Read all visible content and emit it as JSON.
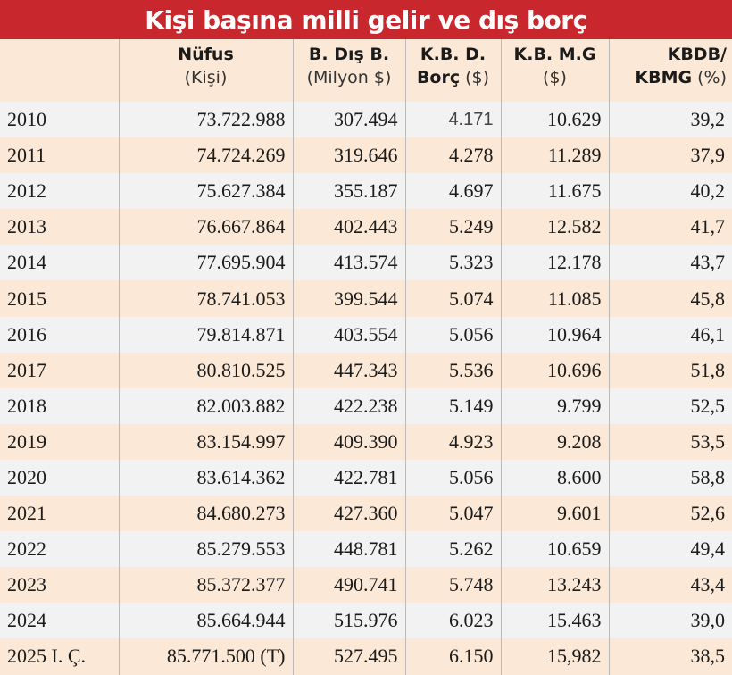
{
  "title": "Kişi başına milli gelir ve dış borç",
  "headers": [
    {
      "line1": "",
      "line2": ""
    },
    {
      "line1": "Nüfus",
      "line2": "(Kişi)"
    },
    {
      "line1": "B. Dış B.",
      "line2": "(Milyon $)"
    },
    {
      "line1": "K.B. D.",
      "line2_bold": "Borç",
      "line2": " ($)"
    },
    {
      "line1": "K.B. M.G",
      "line2": "($)"
    },
    {
      "line1": "KBDB/",
      "line2_bold": "KBMG",
      "line2": " (%)"
    }
  ],
  "rows": [
    {
      "year": "2010",
      "nufus": "73.722.988",
      "dis_borc": "307.494",
      "kb_borc": "4.171",
      "kb_mg": "10.629",
      "oran": "39,2"
    },
    {
      "year": "2011",
      "nufus": "74.724.269",
      "dis_borc": "319.646",
      "kb_borc": "4.278",
      "kb_mg": "11.289",
      "oran": "37,9"
    },
    {
      "year": "2012",
      "nufus": "75.627.384",
      "dis_borc": "355.187",
      "kb_borc": "4.697",
      "kb_mg": "11.675",
      "oran": "40,2"
    },
    {
      "year": "2013",
      "nufus": "76.667.864",
      "dis_borc": "402.443",
      "kb_borc": "5.249",
      "kb_mg": "12.582",
      "oran": "41,7"
    },
    {
      "year": "2014",
      "nufus": "77.695.904",
      "dis_borc": "413.574",
      "kb_borc": "5.323",
      "kb_mg": "12.178",
      "oran": "43,7"
    },
    {
      "year": "2015",
      "nufus": "78.741.053",
      "dis_borc": "399.544",
      "kb_borc": "5.074",
      "kb_mg": "11.085",
      "oran": "45,8"
    },
    {
      "year": "2016",
      "nufus": "79.814.871",
      "dis_borc": "403.554",
      "kb_borc": "5.056",
      "kb_mg": "10.964",
      "oran": "46,1"
    },
    {
      "year": "2017",
      "nufus": "80.810.525",
      "dis_borc": "447.343",
      "kb_borc": "5.536",
      "kb_mg": "10.696",
      "oran": "51,8"
    },
    {
      "year": "2018",
      "nufus": "82.003.882",
      "dis_borc": "422.238",
      "kb_borc": "5.149",
      "kb_mg": "9.799",
      "oran": "52,5"
    },
    {
      "year": "2019",
      "nufus": "83.154.997",
      "dis_borc": "409.390",
      "kb_borc": "4.923",
      "kb_mg": "9.208",
      "oran": "53,5"
    },
    {
      "year": "2020",
      "nufus": "83.614.362",
      "dis_borc": "422.781",
      "kb_borc": "5.056",
      "kb_mg": "8.600",
      "oran": "58,8"
    },
    {
      "year": "2021",
      "nufus": "84.680.273",
      "dis_borc": "427.360",
      "kb_borc": "5.047",
      "kb_mg": "9.601",
      "oran": "52,6"
    },
    {
      "year": "2022",
      "nufus": "85.279.553",
      "dis_borc": "448.781",
      "kb_borc": "5.262",
      "kb_mg": "10.659",
      "oran": "49,4"
    },
    {
      "year": "2023",
      "nufus": "85.372.377",
      "dis_borc": "490.741",
      "kb_borc": "5.748",
      "kb_mg": "13.243",
      "oran": "43,4"
    },
    {
      "year": "2024",
      "nufus": "85.664.944",
      "dis_borc": "515.976",
      "kb_borc": "6.023",
      "kb_mg": "15.463",
      "oran": "39,0"
    },
    {
      "year": "2025 I. Ç.",
      "nufus": "85.771.500 (T)",
      "dis_borc": "527.495",
      "kb_borc": "6.150",
      "kb_mg": "15,982",
      "oran": "38,5"
    }
  ],
  "colors": {
    "title_bg": "#c8282d",
    "row_gray": "#f2f2f2",
    "row_peach": "#fbe8d6"
  }
}
